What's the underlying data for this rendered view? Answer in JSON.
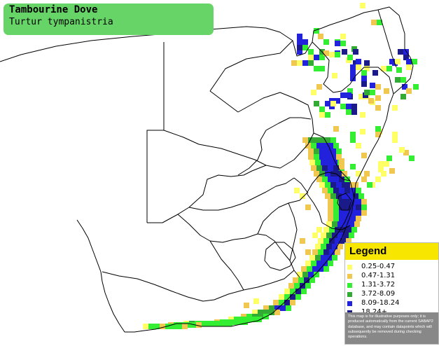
{
  "species": {
    "common_name": "Tambourine Dove",
    "scientific_name": "Turtur tympanistria"
  },
  "colors": {
    "title_box": "#66d466",
    "legend_header": "#f7e600",
    "map_background": "#ffffff",
    "borders": "#000000"
  },
  "legend": {
    "title": "Legend",
    "items": [
      {
        "label": "0.25-0.47",
        "color": "#ffff66"
      },
      {
        "label": "0.47-1.31",
        "color": "#f0c850"
      },
      {
        "label": "1.31-3.72",
        "color": "#33ee33"
      },
      {
        "label": "3.72-8.09",
        "color": "#33aa33"
      },
      {
        "label": "8.09-18.24",
        "color": "#2222dd"
      },
      {
        "label": "18.24+",
        "color": "#1a1a88"
      }
    ],
    "note": "This map is for illustrative purposes only; it is produced automatically from the current SABAP2 database, and may contain datapoints which will subsequently be removed during checking operations."
  }
}
